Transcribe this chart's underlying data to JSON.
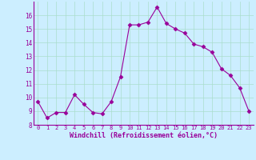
{
  "x": [
    0,
    1,
    2,
    3,
    4,
    5,
    6,
    7,
    8,
    9,
    10,
    11,
    12,
    13,
    14,
    15,
    16,
    17,
    18,
    19,
    20,
    21,
    22,
    23
  ],
  "y": [
    9.7,
    8.5,
    8.9,
    8.9,
    10.2,
    9.5,
    8.9,
    8.8,
    9.7,
    11.5,
    15.3,
    15.3,
    15.5,
    16.6,
    15.4,
    15.0,
    14.7,
    13.9,
    13.7,
    13.3,
    12.1,
    11.6,
    10.7,
    9.0
  ],
  "line_color": "#990099",
  "marker": "D",
  "marker_size": 2.5,
  "background_color": "#cceeff",
  "grid_color": "#aaddcc",
  "xlabel": "Windchill (Refroidissement éolien,°C)",
  "xlabel_color": "#990099",
  "tick_color": "#990099",
  "ylim": [
    8,
    17
  ],
  "yticks": [
    8,
    9,
    10,
    11,
    12,
    13,
    14,
    15,
    16
  ],
  "xlim": [
    -0.5,
    23.5
  ],
  "xticks": [
    0,
    1,
    2,
    3,
    4,
    5,
    6,
    7,
    8,
    9,
    10,
    11,
    12,
    13,
    14,
    15,
    16,
    17,
    18,
    19,
    20,
    21,
    22,
    23
  ]
}
